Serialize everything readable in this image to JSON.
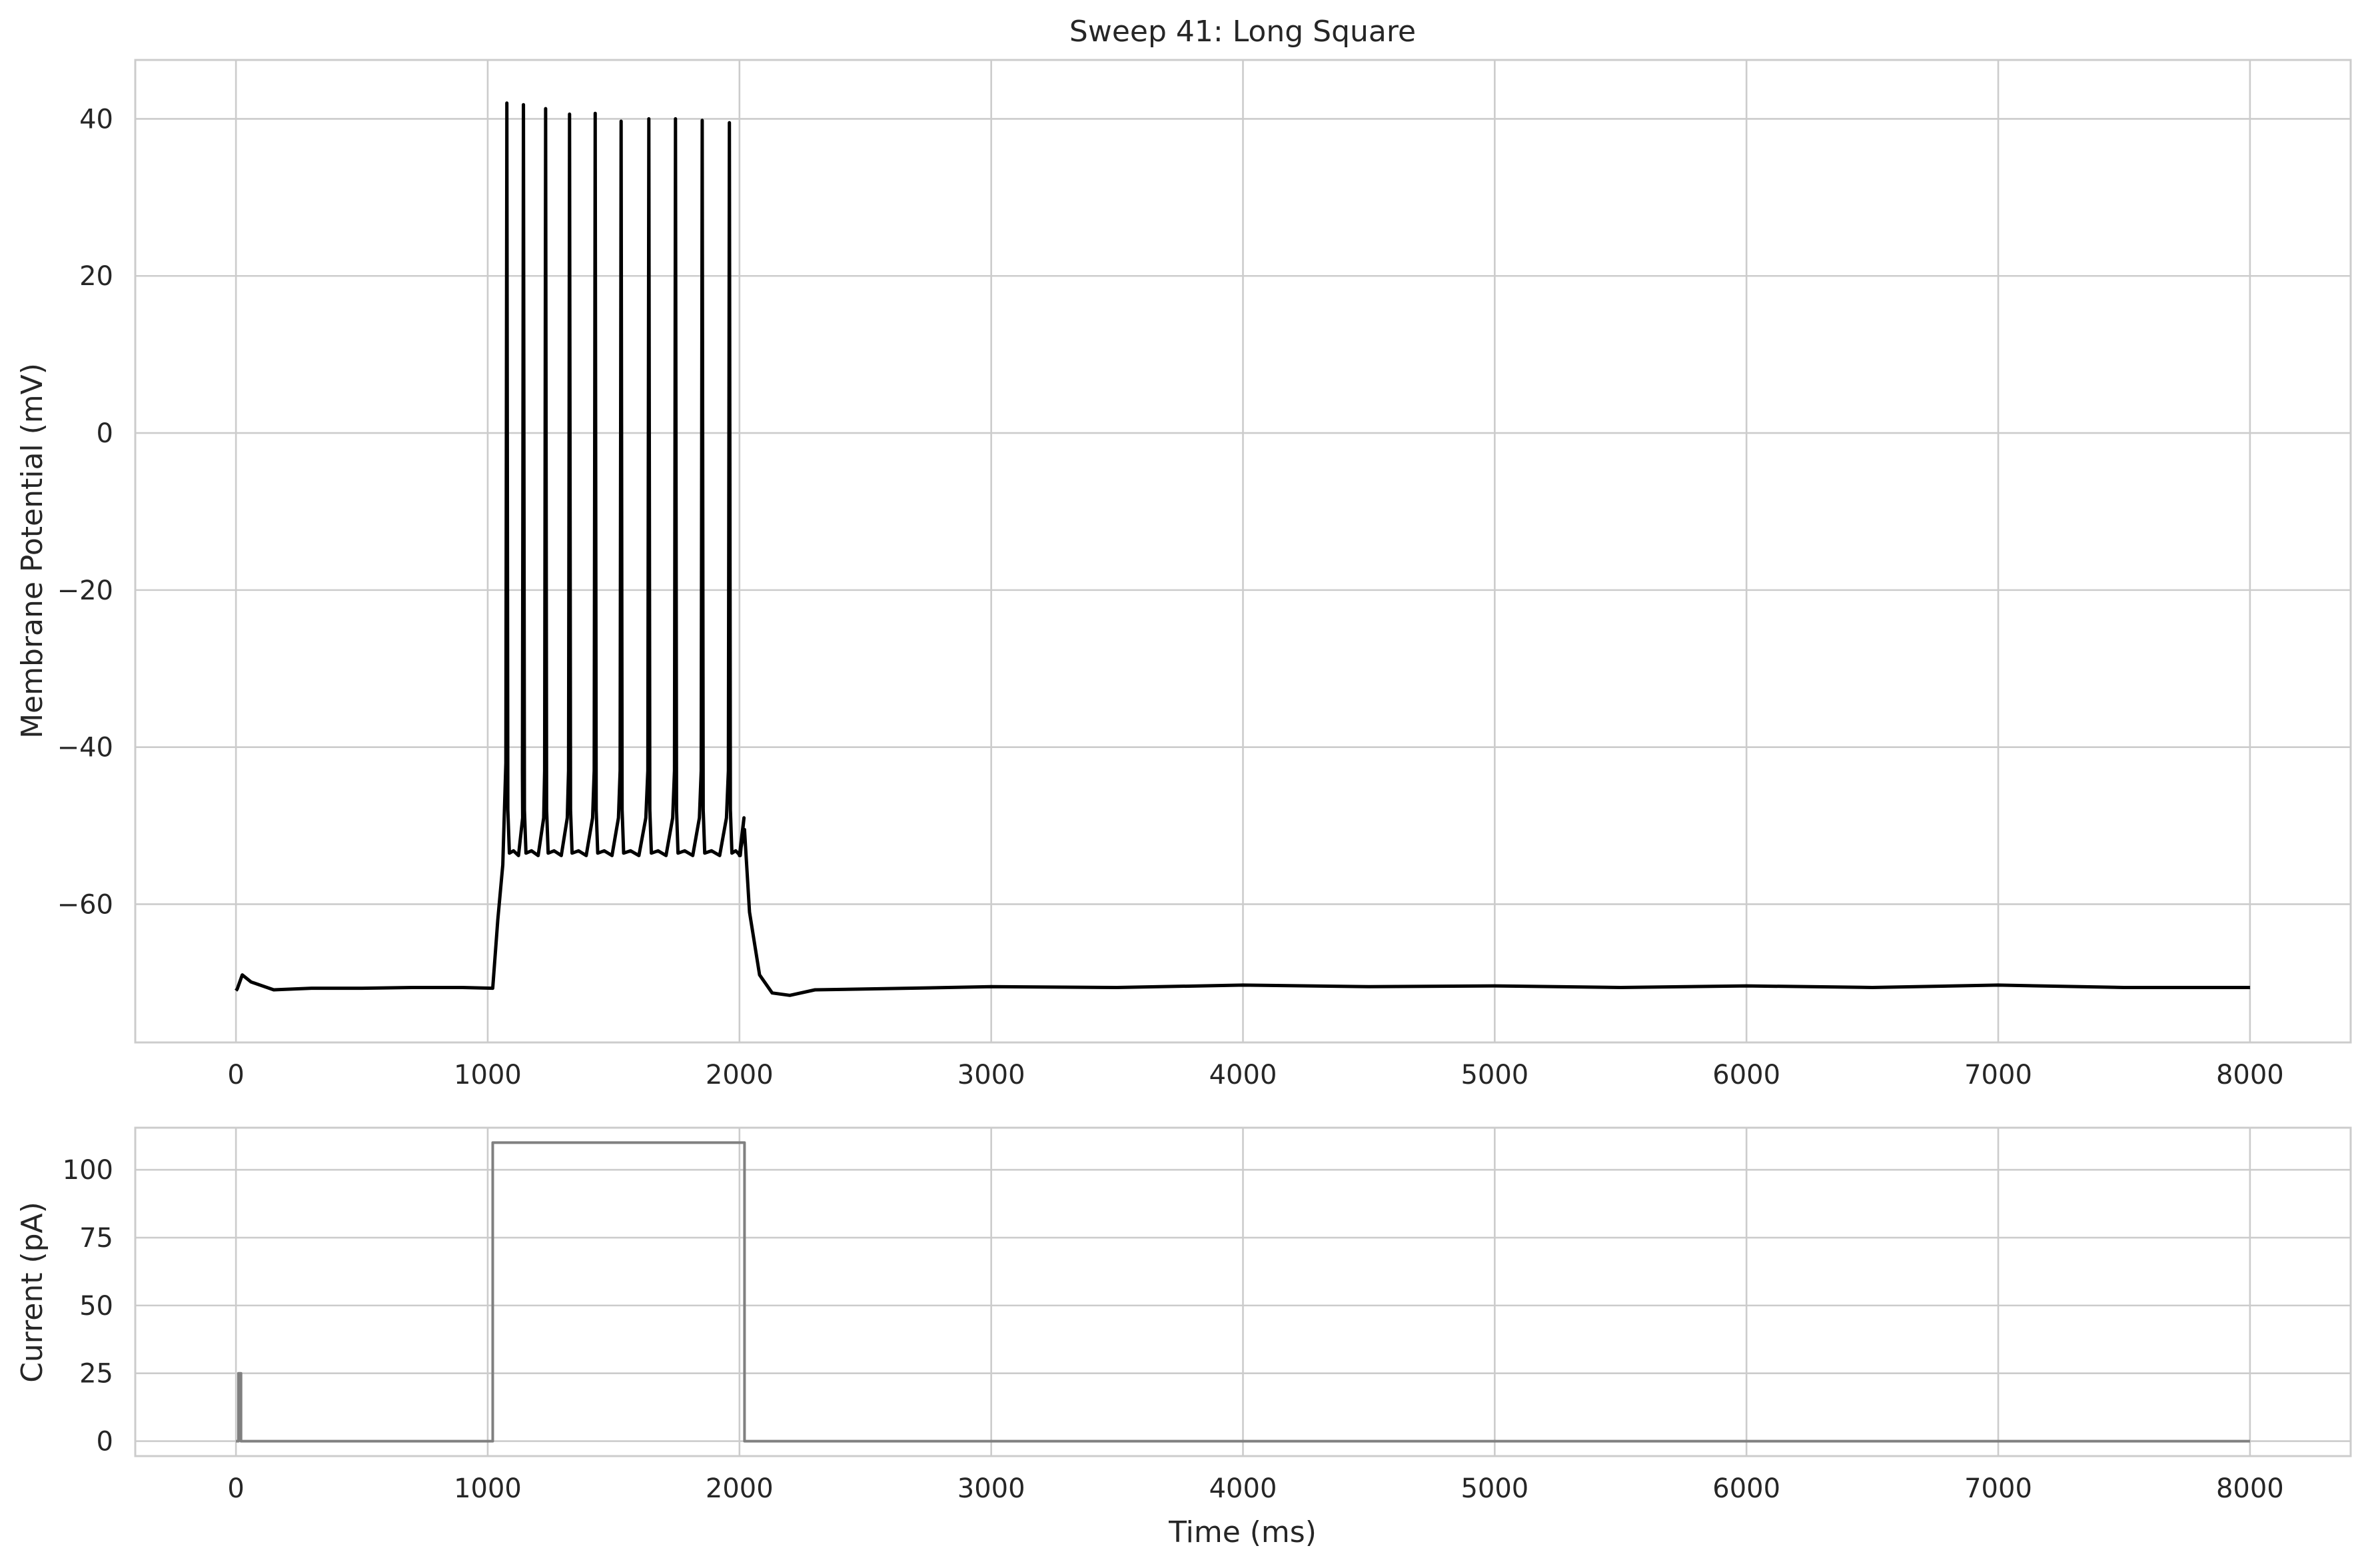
{
  "chart_data": [
    {
      "type": "line",
      "title": "Sweep 41: Long Square",
      "xlabel": "",
      "ylabel": "Membrane Potential (mV)",
      "xlim": [
        -400,
        8400
      ],
      "ylim": [
        -77.6,
        47.5
      ],
      "xticks": [
        0,
        1000,
        2000,
        3000,
        4000,
        5000,
        6000,
        7000,
        8000
      ],
      "yticks": [
        -60,
        -40,
        -20,
        0,
        20,
        40
      ],
      "grid": true,
      "series": [
        {
          "name": "voltage",
          "color": "#000000",
          "baseline_mv": -70.6,
          "stim_window_ms": [
            1020,
            2020
          ],
          "spike_times_ms": [
            1076,
            1142,
            1230,
            1325,
            1427,
            1530,
            1640,
            1746,
            1852,
            1960
          ],
          "spike_peaks_mv": [
            42.0,
            41.8,
            41.3,
            40.6,
            40.7,
            39.7,
            40.0,
            40.0,
            39.8,
            39.5
          ],
          "trough_mv": -53.5,
          "points": [
            [
              0,
              -71.0
            ],
            [
              5,
              -70.8
            ],
            [
              25,
              -69.0
            ],
            [
              60,
              -69.9
            ],
            [
              150,
              -70.9
            ],
            [
              300,
              -70.7
            ],
            [
              500,
              -70.7
            ],
            [
              700,
              -70.6
            ],
            [
              900,
              -70.6
            ],
            [
              1020,
              -70.7
            ],
            [
              1040,
              -62.0
            ],
            [
              1060,
              -55.0
            ],
            [
              2020,
              -50.5
            ],
            [
              2040,
              -61.0
            ],
            [
              2080,
              -69.0
            ],
            [
              2130,
              -71.3
            ],
            [
              2200,
              -71.6
            ],
            [
              2300,
              -70.9
            ],
            [
              2500,
              -70.8
            ],
            [
              3000,
              -70.5
            ],
            [
              3500,
              -70.6
            ],
            [
              4000,
              -70.3
            ],
            [
              4500,
              -70.5
            ],
            [
              5000,
              -70.4
            ],
            [
              5500,
              -70.6
            ],
            [
              6000,
              -70.4
            ],
            [
              6500,
              -70.6
            ],
            [
              7000,
              -70.3
            ],
            [
              7500,
              -70.6
            ],
            [
              8000,
              -70.6
            ]
          ]
        }
      ]
    },
    {
      "type": "line",
      "title": "",
      "xlabel": "Time (ms)",
      "ylabel": "Current (pA)",
      "xlim": [
        -400,
        8400
      ],
      "ylim": [
        -5.5,
        115.5
      ],
      "xticks": [
        0,
        1000,
        2000,
        3000,
        4000,
        5000,
        6000,
        7000,
        8000
      ],
      "yticks": [
        0,
        25,
        50,
        75,
        100
      ],
      "grid": true,
      "series": [
        {
          "name": "stimulus",
          "color": "#808080",
          "points": [
            [
              0,
              0
            ],
            [
              10,
              0
            ],
            [
              10,
              25
            ],
            [
              20,
              25
            ],
            [
              20,
              0
            ],
            [
              1020,
              0
            ],
            [
              1020,
              110
            ],
            [
              2020,
              110
            ],
            [
              2020,
              0
            ],
            [
              8000,
              0
            ]
          ]
        }
      ]
    }
  ]
}
